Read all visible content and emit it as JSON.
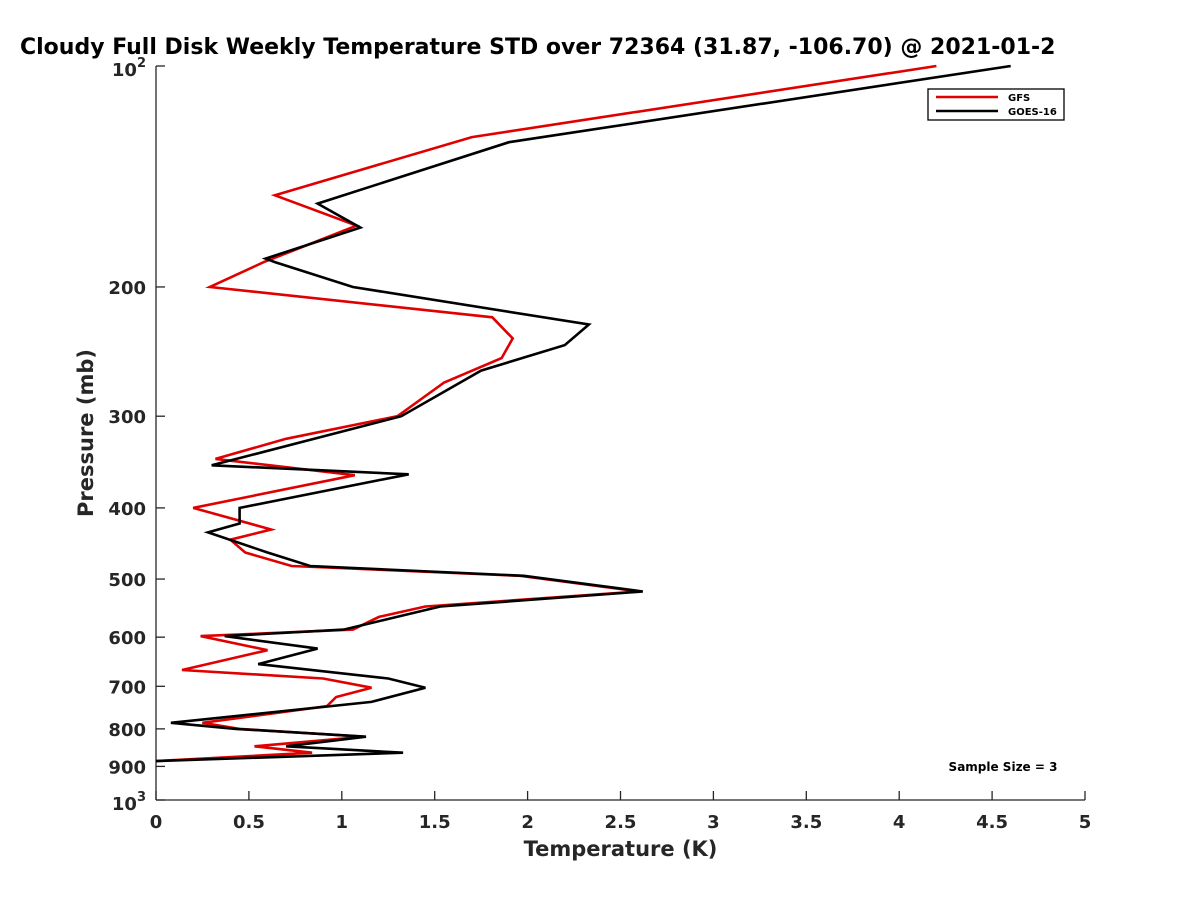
{
  "chart_data": {
    "type": "line",
    "title": "Cloudy Full Disk Weekly Temperature STD over 72364 (31.87, -106.70) @ 2021-01-2",
    "xlabel": "Temperature (K)",
    "ylabel": "Pressure (mb)",
    "xlim": [
      0,
      5
    ],
    "ylim": [
      100,
      1000
    ],
    "y_scale": "log",
    "y_reversed": true,
    "grid": false,
    "legend_position": "top-right",
    "x_ticks": [
      "0",
      "0.5",
      "1",
      "1.5",
      "2",
      "2.5",
      "3",
      "3.5",
      "4",
      "4.5",
      "5"
    ],
    "y_ticks": [
      {
        "value": 200,
        "label": "200"
      },
      {
        "value": 300,
        "label": "300"
      },
      {
        "value": 400,
        "label": "400"
      },
      {
        "value": 500,
        "label": "500"
      },
      {
        "value": 600,
        "label": "600"
      },
      {
        "value": 700,
        "label": "700"
      },
      {
        "value": 800,
        "label": "800"
      },
      {
        "value": 900,
        "label": "900"
      }
    ],
    "y_tick_powers": [
      {
        "value": 100,
        "base": "10",
        "exp": "2"
      },
      {
        "value": 1000,
        "base": "10",
        "exp": "3"
      }
    ],
    "annotation": "Sample Size = 3",
    "series": [
      {
        "name": "GFS",
        "color": "#e00000",
        "points": [
          [
            4.2,
            100
          ],
          [
            1.7,
            125
          ],
          [
            0.64,
            150
          ],
          [
            1.08,
            165
          ],
          [
            0.58,
            185
          ],
          [
            0.29,
            200
          ],
          [
            1.81,
            220
          ],
          [
            1.92,
            235
          ],
          [
            1.86,
            250
          ],
          [
            1.55,
            270
          ],
          [
            1.3,
            300
          ],
          [
            0.7,
            322
          ],
          [
            0.32,
            343
          ],
          [
            1.07,
            361
          ],
          [
            0.2,
            400
          ],
          [
            0.62,
            428
          ],
          [
            0.4,
            442
          ],
          [
            0.48,
            460
          ],
          [
            0.73,
            480
          ],
          [
            1.96,
            495
          ],
          [
            2.6,
            520
          ],
          [
            1.45,
            545
          ],
          [
            1.2,
            563
          ],
          [
            1.06,
            586
          ],
          [
            0.24,
            598
          ],
          [
            0.6,
            625
          ],
          [
            0.14,
            665
          ],
          [
            0.9,
            683
          ],
          [
            1.16,
            703
          ],
          [
            0.97,
            724
          ],
          [
            0.92,
            745
          ],
          [
            0.25,
            785
          ],
          [
            0.45,
            800
          ],
          [
            1.12,
            820
          ],
          [
            0.53,
            845
          ],
          [
            0.84,
            862
          ],
          [
            0,
            885
          ]
        ]
      },
      {
        "name": "GOES-16",
        "color": "#000000",
        "points": [
          [
            4.6,
            100
          ],
          [
            1.9,
            127
          ],
          [
            0.87,
            154
          ],
          [
            1.1,
            166
          ],
          [
            0.59,
            183
          ],
          [
            0.64,
            185
          ],
          [
            1.06,
            200
          ],
          [
            2.33,
            225
          ],
          [
            2.2,
            240
          ],
          [
            1.75,
            260
          ],
          [
            1.32,
            300
          ],
          [
            0.3,
            350
          ],
          [
            1.36,
            360
          ],
          [
            0.45,
            400
          ],
          [
            0.45,
            420
          ],
          [
            0.28,
            432
          ],
          [
            0.6,
            460
          ],
          [
            0.83,
            480
          ],
          [
            1.98,
            495
          ],
          [
            2.62,
            520
          ],
          [
            1.53,
            545
          ],
          [
            1.01,
            586
          ],
          [
            0.37,
            598
          ],
          [
            0.87,
            622
          ],
          [
            0.55,
            653
          ],
          [
            1.25,
            683
          ],
          [
            1.45,
            703
          ],
          [
            1.16,
            735
          ],
          [
            0.08,
            785
          ],
          [
            0.43,
            800
          ],
          [
            1.13,
            820
          ],
          [
            0.7,
            845
          ],
          [
            1.33,
            862
          ],
          [
            0,
            885
          ]
        ]
      }
    ]
  }
}
